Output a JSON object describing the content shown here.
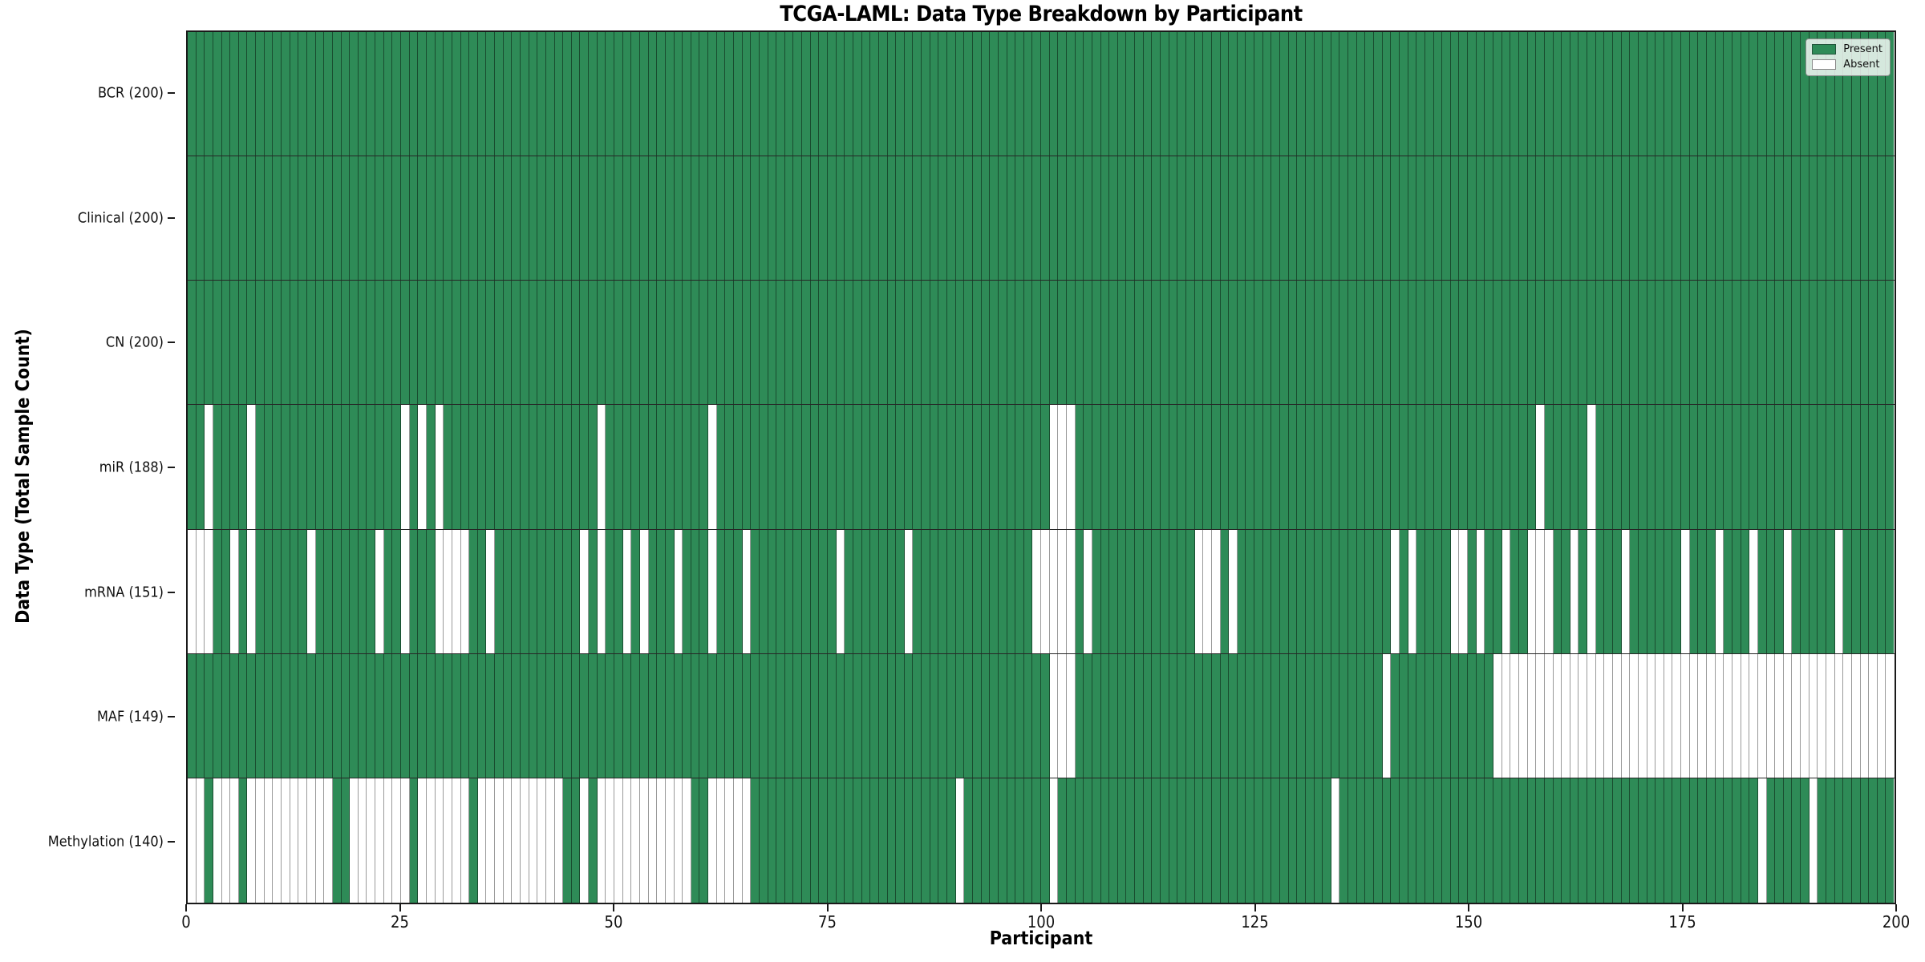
{
  "title": "TCGA-LAML: Data Type Breakdown by Participant",
  "x_axis": {
    "label": "Participant",
    "ticks": [
      0,
      25,
      50,
      75,
      100,
      125,
      150,
      175,
      200
    ],
    "min": 0,
    "max": 200
  },
  "y_axis": {
    "label": "Data Type (Total Sample Count)"
  },
  "legend": {
    "position": "upper right",
    "items": [
      {
        "label": "Present",
        "color": "#2e8b57"
      },
      {
        "label": "Absent",
        "color": "#ffffff"
      }
    ]
  },
  "colors": {
    "present": "#2e8b57",
    "absent": "#ffffff",
    "cell_edge_on_present": "rgba(0,0,0,0.45)",
    "cell_edge_on_absent": "#9a9a9a",
    "spine": "#1a1a1a",
    "row_divider": "#1a1a1a",
    "legend_background": "rgba(255,255,255,0.8)"
  },
  "chart_data": {
    "type": "heatmap",
    "title": "TCGA-LAML: Data Type Breakdown by Participant",
    "xlabel": "Participant",
    "ylabel": "Data Type (Total Sample Count)",
    "x_range": [
      0,
      200
    ],
    "n_participants": 200,
    "cell_values": {
      "present": 1,
      "absent": 0
    },
    "rows": [
      {
        "name": "BCR",
        "label": "BCR (200)",
        "present_count": 200,
        "absent_participants": []
      },
      {
        "name": "Clinical",
        "label": "Clinical (200)",
        "present_count": 200,
        "absent_participants": []
      },
      {
        "name": "CN",
        "label": "CN (200)",
        "present_count": 200,
        "absent_participants": []
      },
      {
        "name": "miR",
        "label": "miR (188)",
        "present_count": 188,
        "absent_participants": [
          2,
          7,
          25,
          27,
          29,
          48,
          61,
          101,
          102,
          103,
          158,
          164
        ]
      },
      {
        "name": "mRNA",
        "label": "mRNA (151)",
        "present_count": 151,
        "absent_participants": [
          0,
          1,
          2,
          5,
          7,
          14,
          22,
          25,
          29,
          30,
          31,
          32,
          35,
          46,
          48,
          51,
          53,
          57,
          61,
          65,
          76,
          84,
          99,
          100,
          101,
          102,
          103,
          105,
          118,
          119,
          120,
          122,
          141,
          143,
          148,
          149,
          151,
          154,
          157,
          158,
          159,
          162,
          164,
          168,
          175,
          179,
          183,
          187,
          193
        ]
      },
      {
        "name": "MAF",
        "label": "MAF (149)",
        "present_count": 149,
        "absent_participants": [
          101,
          102,
          103,
          140,
          153,
          154,
          155,
          156,
          157,
          158,
          159,
          160,
          161,
          162,
          163,
          164,
          165,
          166,
          167,
          168,
          169,
          170,
          171,
          172,
          173,
          174,
          175,
          176,
          177,
          178,
          179,
          180,
          181,
          182,
          183,
          184,
          185,
          186,
          187,
          188,
          189,
          190,
          191,
          192,
          193,
          194,
          195,
          196,
          197,
          198,
          199
        ]
      },
      {
        "name": "Methylation",
        "label": "Methylation (140)",
        "present_count": 140,
        "absent_participants": [
          0,
          1,
          3,
          4,
          5,
          7,
          8,
          9,
          10,
          11,
          12,
          13,
          14,
          15,
          16,
          19,
          20,
          21,
          22,
          23,
          24,
          25,
          27,
          28,
          29,
          30,
          31,
          32,
          34,
          35,
          36,
          37,
          38,
          39,
          40,
          41,
          42,
          43,
          46,
          48,
          49,
          50,
          51,
          52,
          53,
          54,
          55,
          56,
          57,
          58,
          61,
          62,
          63,
          64,
          65,
          90,
          101,
          134,
          184,
          190
        ]
      }
    ]
  }
}
